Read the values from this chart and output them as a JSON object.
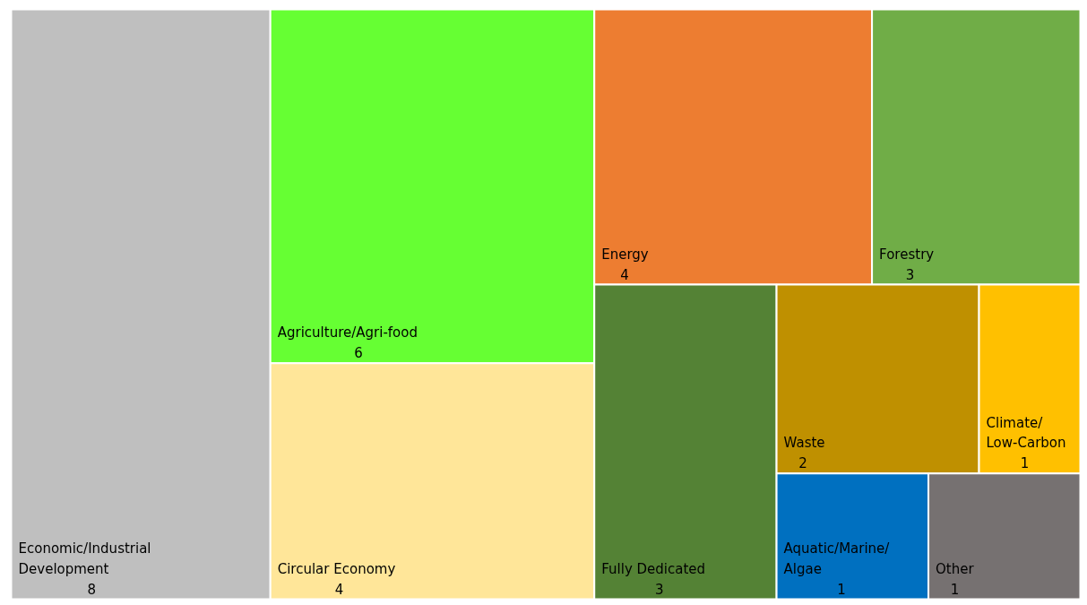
{
  "chart_data": {
    "type": "other",
    "categories": [
      "Economic/Industrial Development",
      "Agriculture/Agri-food",
      "Circular Economy",
      "Energy",
      "Forestry",
      "Fully Dedicated",
      "Waste",
      "Climate/Low-Carbon",
      "Aquatic/Marine/Algae",
      "Other"
    ],
    "values": [
      8,
      6,
      4,
      4,
      3,
      3,
      2,
      1,
      1,
      1
    ],
    "colors": [
      "#bfbfbf",
      "#66ff33",
      "#ffe699",
      "#ed7d31",
      "#70ad47",
      "#548235",
      "#bf9000",
      "#ffc000",
      "#0070c0",
      "#767171"
    ],
    "data_labels": true
  }
}
